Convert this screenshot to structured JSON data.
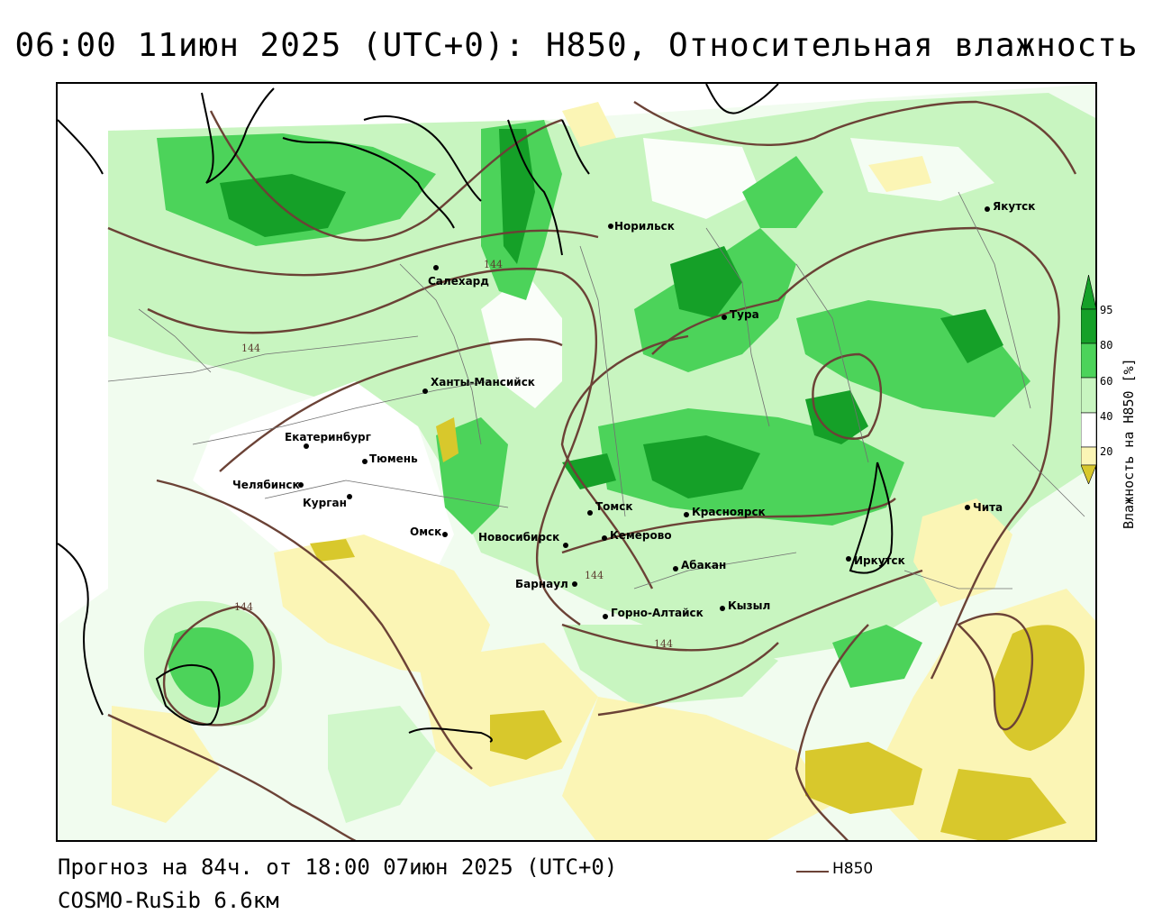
{
  "header": {
    "title": "06:00 11июн 2025 (UTC+0): H850, Относительная влажность"
  },
  "footer": {
    "forecast": "Прогноз на 84ч. от 18:00 07июн 2025 (UTC+0)",
    "model": "COSMO-RuSib 6.6км",
    "contour_legend": "H850"
  },
  "colorbar": {
    "title": "Влажность на H850 [%]",
    "ticks": [
      "95",
      "80",
      "60",
      "40",
      "20"
    ],
    "colors": {
      "very_dry": "#d8c82c",
      "dry": "#fbf5b5",
      "neutral": "#ffffff",
      "moist": "#c8f5c0",
      "wet": "#4cd35a",
      "saturated": "#15a028"
    }
  },
  "map": {
    "contour_value": "144",
    "contour_color": "#6b4236",
    "cities": [
      {
        "name": "Салехард"
      },
      {
        "name": "Норильск"
      },
      {
        "name": "Якутск"
      },
      {
        "name": "Тура"
      },
      {
        "name": "Ханты-Мансийск"
      },
      {
        "name": "Екатеринбург"
      },
      {
        "name": "Тюмень"
      },
      {
        "name": "Челябинск"
      },
      {
        "name": "Курган"
      },
      {
        "name": "Омск"
      },
      {
        "name": "Новосибирск"
      },
      {
        "name": "Томск"
      },
      {
        "name": "Кемерово"
      },
      {
        "name": "Красноярск"
      },
      {
        "name": "Барнаул"
      },
      {
        "name": "Абакан"
      },
      {
        "name": "Горно-Алтайск"
      },
      {
        "name": "Кызыл"
      },
      {
        "name": "Иркутск"
      },
      {
        "name": "Чита"
      }
    ]
  }
}
